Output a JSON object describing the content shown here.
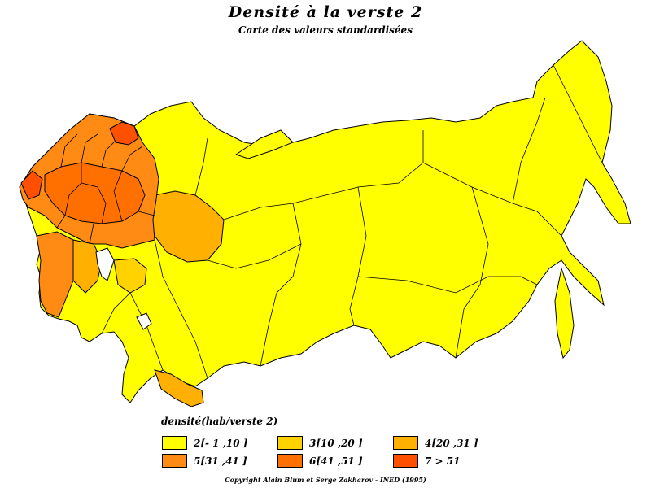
{
  "title": "Densité à la verste 2",
  "subtitle": "Carte des valeurs standardisées",
  "legend": {
    "title": "densité(hab/verste 2)",
    "items": [
      {
        "label": "2[- 1 ,10 ]",
        "color": "#ffff00"
      },
      {
        "label": "3[10 ,20 ]",
        "color": "#ffd200"
      },
      {
        "label": "4[20 ,31 ]",
        "color": "#ffb000"
      },
      {
        "label": "5[31 ,41 ]",
        "color": "#ff8a14"
      },
      {
        "label": "6[41 ,51 ]",
        "color": "#ff7000"
      },
      {
        "label": "7 > 51",
        "color": "#ff5000"
      }
    ]
  },
  "copyright": "Copyright Alain Blum et Serge Zakharov - INED (1995)"
}
